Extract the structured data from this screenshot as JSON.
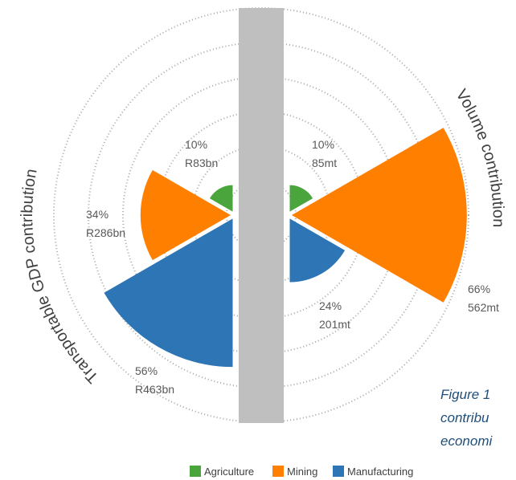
{
  "chart_data": {
    "type": "split-rose",
    "categories": [
      "Agriculture",
      "Mining",
      "Manufacturing"
    ],
    "colors": [
      "#4aa53d",
      "#ff8000",
      "#2e75b6"
    ],
    "series": [
      {
        "name": "Transportable GDP contribution",
        "side": "left",
        "values": [
          10,
          34,
          56
        ],
        "value_labels": [
          "10%",
          "34%",
          "56%"
        ],
        "detail_labels": [
          "R83bn",
          "R286bn",
          "R463bn"
        ]
      },
      {
        "name": "Volume contribution",
        "side": "right",
        "values": [
          10,
          66,
          24
        ],
        "value_labels": [
          "10%",
          "66%",
          "24%"
        ],
        "detail_labels": [
          "85mt",
          "562mt",
          "201mt"
        ]
      }
    ],
    "caption": [
      "Figure 1",
      "contribu",
      "economi"
    ]
  }
}
